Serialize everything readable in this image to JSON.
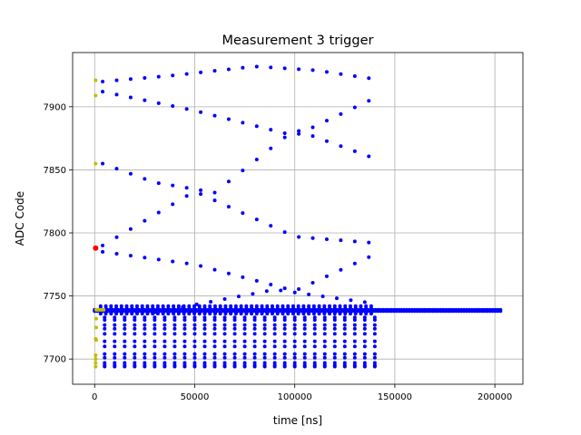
{
  "chart_data": {
    "type": "scatter",
    "title": "Measurement 3 trigger",
    "xlabel": "time [ns]",
    "ylabel": "ADC Code",
    "xlim": [
      -11000,
      214000
    ],
    "ylim": [
      7680,
      7943
    ],
    "xticks": [
      0,
      50000,
      100000,
      150000,
      200000
    ],
    "xtick_labels": [
      "0",
      "50000",
      "100000",
      "150000",
      "200000"
    ],
    "yticks": [
      7700,
      7750,
      7800,
      7850,
      7900
    ],
    "ytick_labels": [
      "7700",
      "7750",
      "7800",
      "7850",
      "7900"
    ],
    "grid": true,
    "colors": {
      "main": "#0000ff",
      "start": "#bfbf00",
      "trigger": "#ff0000"
    },
    "series": [
      {
        "color": "#0000ff",
        "marker_size": 4,
        "groups": [
          {
            "kind": "band",
            "x_start": 0,
            "x_end": 203000,
            "x_step": 1300,
            "y": 7739
          },
          {
            "kind": "band",
            "x_start": 0,
            "x_end": 203000,
            "x_step": 1300,
            "y": 7738
          },
          {
            "kind": "band",
            "x_start": 3000,
            "x_end": 140000,
            "x_step": 2600,
            "y": 7740
          },
          {
            "kind": "band",
            "x_start": 3000,
            "x_end": 140000,
            "x_step": 2600,
            "y": 7737
          },
          {
            "kind": "band",
            "x_start": 3000,
            "x_end": 140000,
            "x_step": 2600,
            "y": 7736
          },
          {
            "kind": "band",
            "x_start": 3000,
            "x_end": 140000,
            "x_step": 2600,
            "y": 7742
          },
          {
            "kind": "cols",
            "x_start": 5000,
            "x_end": 140000,
            "x_step": 5000,
            "y": [
              7733,
              7731,
              7727,
              7724,
              7720,
              7714,
              7710,
              7704,
              7701,
              7697,
              7695,
              7694
            ]
          },
          {
            "kind": "curve",
            "x_start": 4000,
            "x_end": 140000,
            "x_step": 7000,
            "y_points": [
              [
                4000,
                7920
              ],
              [
                40000,
                7925
              ],
              [
                80000,
                7932
              ],
              [
                110000,
                7929
              ],
              [
                140000,
                7922
              ]
            ]
          },
          {
            "kind": "curve",
            "x_start": 4000,
            "x_end": 140000,
            "x_step": 7000,
            "y_points": [
              [
                4000,
                7912
              ],
              [
                50000,
                7897
              ],
              [
                100000,
                7877
              ],
              [
                140000,
                7907
              ]
            ]
          },
          {
            "kind": "curve",
            "x_start": 4000,
            "x_end": 140000,
            "x_step": 7000,
            "y_points": [
              [
                4000,
                7855
              ],
              [
                30000,
                7840
              ],
              [
                60000,
                7832
              ],
              [
                100000,
                7882
              ],
              [
                140000,
                7859
              ]
            ]
          },
          {
            "kind": "curve",
            "x_start": 4000,
            "x_end": 140000,
            "x_step": 7000,
            "y_points": [
              [
                4000,
                7790
              ],
              [
                50000,
                7833
              ],
              [
                100000,
                7797
              ],
              [
                140000,
                7792
              ]
            ]
          },
          {
            "kind": "curve",
            "x_start": 4000,
            "x_end": 140000,
            "x_step": 7000,
            "y_points": [
              [
                4000,
                7785
              ],
              [
                50000,
                7775
              ],
              [
                100000,
                7754
              ],
              [
                140000,
                7783
              ]
            ]
          },
          {
            "kind": "curve",
            "x_start": 30000,
            "x_end": 140000,
            "x_step": 7000,
            "y_points": [
              [
                30000,
                7737
              ],
              [
                90000,
                7755
              ],
              [
                140000,
                7744
              ]
            ]
          }
        ]
      },
      {
        "color": "#bfbf00",
        "marker_size": 4,
        "points": [
          [
            500,
            7921
          ],
          [
            500,
            7909
          ],
          [
            500,
            7855
          ],
          [
            500,
            7716
          ],
          [
            500,
            7703
          ],
          [
            500,
            7700
          ],
          [
            500,
            7697
          ],
          [
            500,
            7694
          ],
          [
            800,
            7739
          ],
          [
            1500,
            7739
          ],
          [
            2500,
            7739
          ],
          [
            3500,
            7739
          ],
          [
            4500,
            7739
          ],
          [
            800,
            7732
          ],
          [
            800,
            7725
          ],
          [
            800,
            7715
          ]
        ]
      },
      {
        "color": "#ff0000",
        "marker_size": 6,
        "points": [
          [
            500,
            7788
          ]
        ]
      }
    ]
  }
}
